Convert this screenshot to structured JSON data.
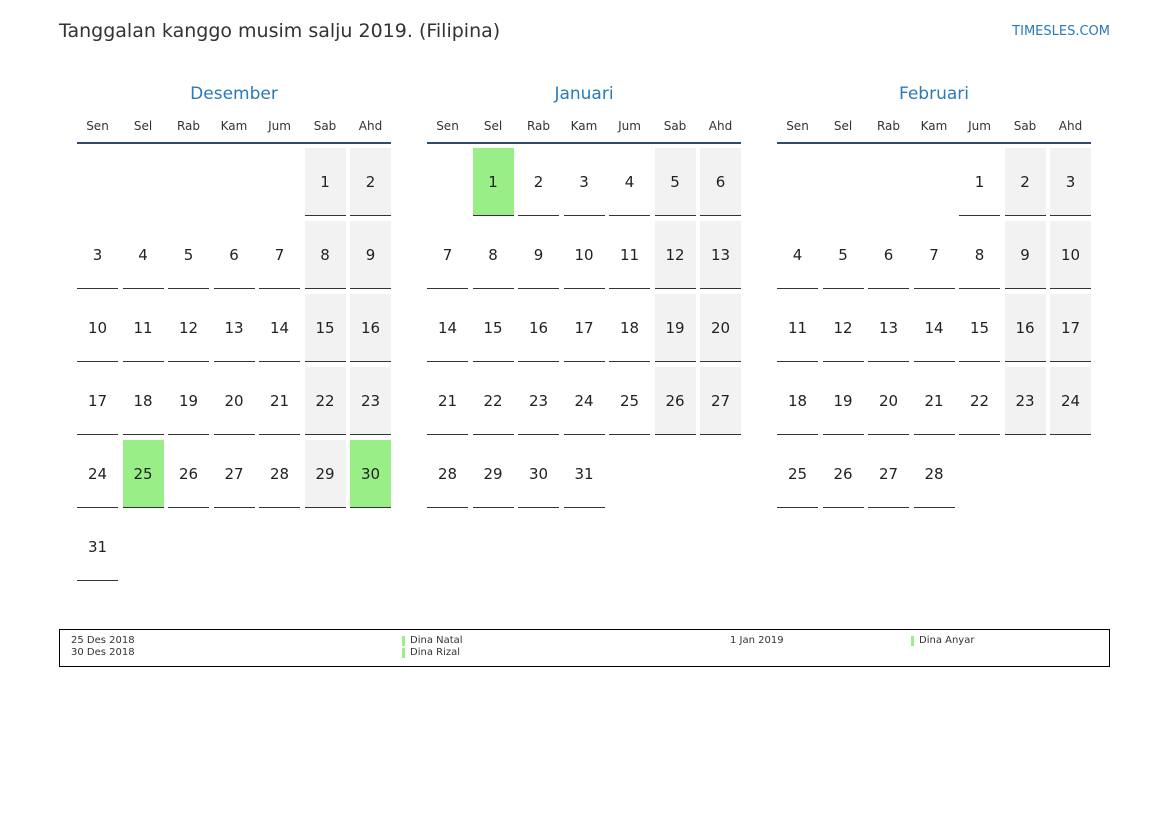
{
  "header": {
    "title": "Tanggalan kanggo musim salju 2019. (Filipina)",
    "site": "TIMESLES.COM"
  },
  "holiday_color": "#99ee88",
  "months": [
    {
      "name": "Desember",
      "weekdays": [
        "Sen",
        "Sel",
        "Rab",
        "Kam",
        "Jum",
        "Sab",
        "Ahd"
      ],
      "weeks": [
        [
          null,
          null,
          null,
          null,
          null,
          1,
          2
        ],
        [
          3,
          4,
          5,
          6,
          7,
          8,
          9
        ],
        [
          10,
          11,
          12,
          13,
          14,
          15,
          16
        ],
        [
          17,
          18,
          19,
          20,
          21,
          22,
          23
        ],
        [
          24,
          {
            "day": 25,
            "holiday": true
          },
          26,
          27,
          28,
          29,
          {
            "day": 30,
            "holiday": true
          }
        ],
        [
          31
        ]
      ]
    },
    {
      "name": "Januari",
      "weekdays": [
        "Sen",
        "Sel",
        "Rab",
        "Kam",
        "Jum",
        "Sab",
        "Ahd"
      ],
      "weeks": [
        [
          null,
          {
            "day": 1,
            "holiday": true
          },
          2,
          3,
          4,
          5,
          6
        ],
        [
          7,
          8,
          9,
          10,
          11,
          12,
          13
        ],
        [
          14,
          15,
          16,
          17,
          18,
          19,
          20
        ],
        [
          21,
          22,
          23,
          24,
          25,
          26,
          27
        ],
        [
          28,
          29,
          30,
          31
        ]
      ]
    },
    {
      "name": "Februari",
      "weekdays": [
        "Sen",
        "Sel",
        "Rab",
        "Kam",
        "Jum",
        "Sab",
        "Ahd"
      ],
      "weeks": [
        [
          null,
          null,
          null,
          null,
          1,
          2,
          3
        ],
        [
          4,
          5,
          6,
          7,
          8,
          9,
          10
        ],
        [
          11,
          12,
          13,
          14,
          15,
          16,
          17
        ],
        [
          18,
          19,
          20,
          21,
          22,
          23,
          24
        ],
        [
          25,
          26,
          27,
          28
        ]
      ]
    }
  ],
  "legend": [
    {
      "items": [
        {
          "date": "25 Des 2018",
          "name": "Dina Natal"
        },
        {
          "date": "30 Des 2018",
          "name": "Dina Rizal"
        }
      ]
    },
    {
      "items": [
        {
          "date": "1 Jan 2019",
          "name": "Dina Anyar"
        }
      ]
    }
  ]
}
